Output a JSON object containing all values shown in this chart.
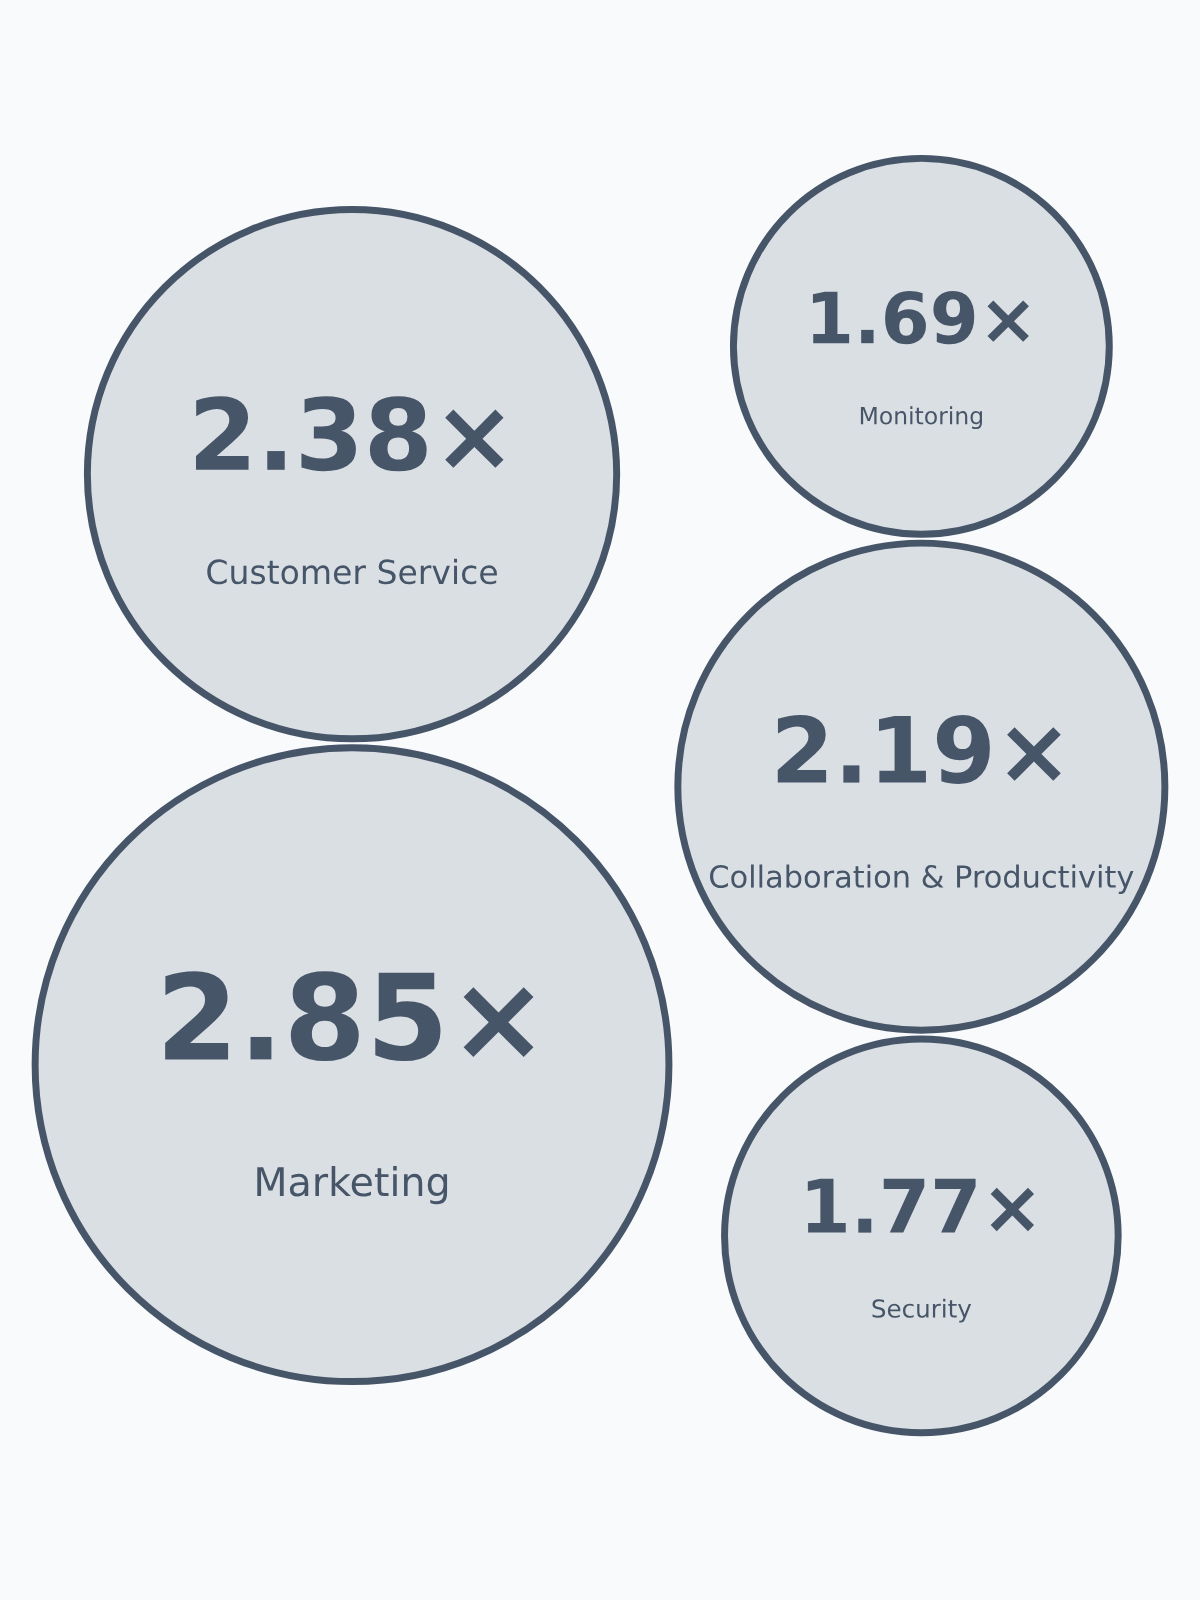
{
  "chart_data": {
    "type": "other",
    "categories": [
      "Customer Service",
      "Marketing",
      "Monitoring",
      "Collaboration & Productivity",
      "Security"
    ],
    "values": [
      2.38,
      2.85,
      1.69,
      2.19,
      1.77
    ],
    "value_labels": [
      "2.38×",
      "2.85×",
      "1.69×",
      "2.19×",
      "1.77×"
    ],
    "color": "#dadfe4"
  }
}
